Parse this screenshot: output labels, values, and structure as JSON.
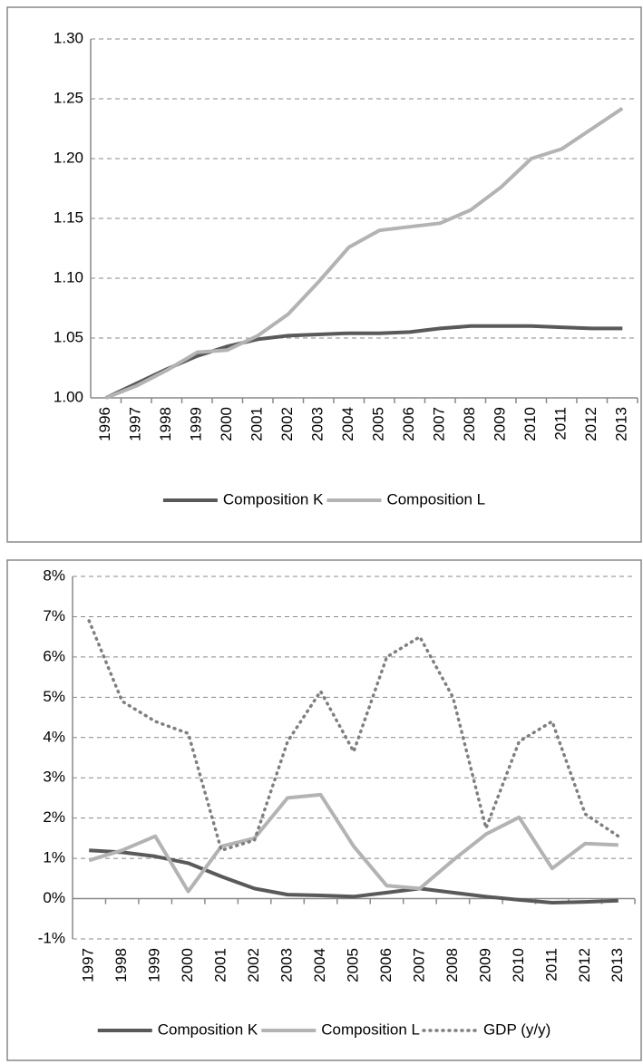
{
  "chart_data": [
    {
      "type": "line",
      "categories": [
        "1996",
        "1997",
        "1998",
        "1999",
        "2000",
        "2001",
        "2002",
        "2003",
        "2004",
        "2005",
        "2006",
        "2007",
        "2008",
        "2009",
        "2010",
        "2011",
        "2012",
        "2013"
      ],
      "series": [
        {
          "name": "Composition K",
          "color": "#595959",
          "style": "solid",
          "values": [
            1.0,
            1.012,
            1.024,
            1.035,
            1.043,
            1.049,
            1.052,
            1.053,
            1.054,
            1.054,
            1.055,
            1.058,
            1.06,
            1.06,
            1.06,
            1.059,
            1.058,
            1.058
          ]
        },
        {
          "name": "Composition L",
          "color": "#b3b3b3",
          "style": "solid",
          "values": [
            1.0,
            1.01,
            1.023,
            1.038,
            1.04,
            1.052,
            1.07,
            1.097,
            1.126,
            1.14,
            1.143,
            1.146,
            1.157,
            1.176,
            1.2,
            1.208,
            1.225,
            1.242
          ]
        }
      ],
      "ylim": [
        1.0,
        1.3
      ],
      "yticks": [
        {
          "value": 1.0,
          "label": "1.00"
        },
        1.05,
        {
          "value": 1.1,
          "label": "1.10"
        },
        1.15,
        {
          "value": 1.2,
          "label": "1.20"
        },
        1.25,
        {
          "value": 1.3,
          "label": "1.30"
        }
      ],
      "grid": true,
      "legend": "bottom"
    },
    {
      "type": "line",
      "categories": [
        "1997",
        "1998",
        "1999",
        "2000",
        "2001",
        "2002",
        "2003",
        "2004",
        "2005",
        "2006",
        "2007",
        "2008",
        "2009",
        "2010",
        "2011",
        "2012",
        "2013"
      ],
      "series": [
        {
          "name": "Composition K",
          "color": "#595959",
          "style": "solid",
          "values": [
            1.2,
            1.15,
            1.05,
            0.88,
            0.55,
            0.25,
            0.1,
            0.08,
            0.05,
            0.15,
            0.25,
            0.15,
            0.05,
            -0.03,
            -0.1,
            -0.08,
            -0.05
          ]
        },
        {
          "name": "Composition L",
          "color": "#b3b3b3",
          "style": "solid",
          "values": [
            0.95,
            1.2,
            1.55,
            0.18,
            1.3,
            1.5,
            2.5,
            2.58,
            1.3,
            0.32,
            0.25,
            0.95,
            1.6,
            2.02,
            0.75,
            1.37,
            1.33
          ]
        },
        {
          "name": "GDP (y/y)",
          "color": "#7f7f7f",
          "style": "dotted",
          "values": [
            6.9,
            4.9,
            4.4,
            4.1,
            1.2,
            1.45,
            3.9,
            5.15,
            3.65,
            6.0,
            6.5,
            5.0,
            1.75,
            3.9,
            4.4,
            2.1,
            1.55
          ]
        }
      ],
      "ylim": [
        -1,
        8
      ],
      "yticks": [
        {
          "value": -1,
          "label": "-1%"
        },
        {
          "value": 0,
          "label": "0%"
        },
        {
          "value": 1,
          "label": "1%"
        },
        {
          "value": 2,
          "label": "2%"
        },
        {
          "value": 3,
          "label": "3%"
        },
        {
          "value": 4,
          "label": "4%"
        },
        {
          "value": 5,
          "label": "5%"
        },
        {
          "value": 6,
          "label": "6%"
        },
        {
          "value": 7,
          "label": "7%"
        },
        {
          "value": 8,
          "label": "8%"
        }
      ],
      "grid": true,
      "legend": "bottom"
    }
  ]
}
